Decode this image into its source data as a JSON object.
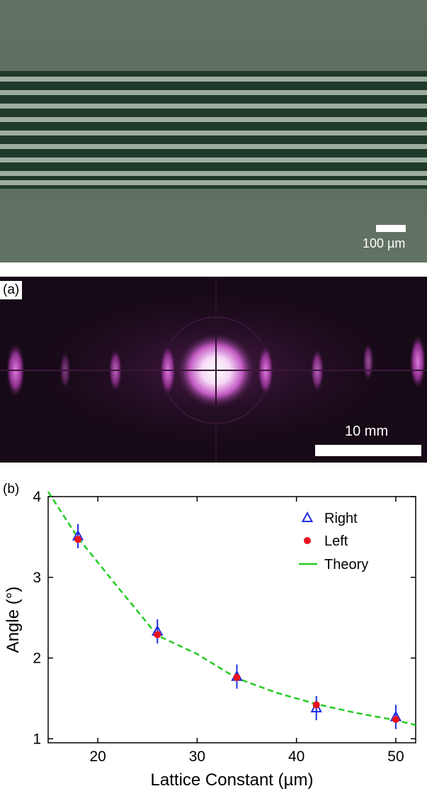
{
  "micrograph": {
    "scalebar_label": "100 µm",
    "stripe_count": 9
  },
  "diffraction": {
    "panel_label": "(a)",
    "scalebar_label": "10 mm"
  },
  "plot": {
    "panel_label": "(b)"
  },
  "chart_data": {
    "type": "scatter",
    "xlabel": "Lattice Constant (µm)",
    "ylabel": "Angle (°)",
    "xlim": [
      15,
      52
    ],
    "ylim": [
      0.95,
      4
    ],
    "xticks": [
      20,
      30,
      40,
      50
    ],
    "yticks": [
      1,
      2,
      3,
      4
    ],
    "grid": false,
    "legend_position": "top-right",
    "series": [
      {
        "name": "Right",
        "marker": "open-triangle",
        "color": "#1f2fe0",
        "x": [
          18,
          26,
          34,
          42,
          50
        ],
        "y": [
          3.51,
          2.33,
          1.77,
          1.38,
          1.27
        ],
        "err": [
          0.15,
          0.15,
          0.15,
          0.15,
          0.15
        ]
      },
      {
        "name": "Left",
        "marker": "filled-circle",
        "color": "#e8141c",
        "x": [
          18,
          26,
          34,
          42,
          50
        ],
        "y": [
          3.47,
          2.29,
          1.76,
          1.42,
          1.24
        ],
        "err": [
          0.15,
          0.15,
          0.15,
          0.15,
          0.15
        ]
      },
      {
        "name": "Theory",
        "style": "dashed-line",
        "color": "#22cc22",
        "x": [
          15,
          18,
          22,
          26,
          30,
          34,
          38,
          42,
          46,
          50,
          52
        ],
        "y": [
          4.06,
          3.49,
          2.88,
          2.28,
          2.05,
          1.75,
          1.57,
          1.43,
          1.32,
          1.23,
          1.17
        ]
      }
    ]
  }
}
